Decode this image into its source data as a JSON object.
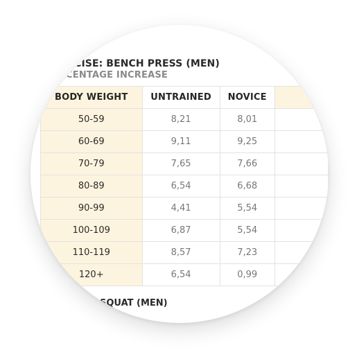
{
  "document": {
    "title": "EXERCISE: BENCH PRESS (MEN)",
    "subtitle": "PERCENTAGE INCREASE",
    "footer_title": "SQUAT (MEN)"
  },
  "table": {
    "headers": [
      "BODY WEIGHT",
      "UNTRAINED",
      "NOVICE",
      ""
    ],
    "rows": [
      {
        "weight": "50-59",
        "untrained": "8,21",
        "novice": "8,01"
      },
      {
        "weight": "60-69",
        "untrained": "9,11",
        "novice": "9,25"
      },
      {
        "weight": "70-79",
        "untrained": "7,65",
        "novice": "7,66"
      },
      {
        "weight": "80-89",
        "untrained": "6,54",
        "novice": "6,68"
      },
      {
        "weight": "90-99",
        "untrained": "4,41",
        "novice": "5,54"
      },
      {
        "weight": "100-109",
        "untrained": "6,87",
        "novice": "5,54"
      },
      {
        "weight": "110-119",
        "untrained": "8,57",
        "novice": "7,23"
      },
      {
        "weight": "120+",
        "untrained": "6,54",
        "novice": "0,99"
      }
    ]
  },
  "colors": {
    "highlight_bg": "#fdf4df",
    "border": "#e2e2e2",
    "value_text": "#777777",
    "heading_text": "#262626",
    "subtitle_text": "#8a8a8a"
  }
}
